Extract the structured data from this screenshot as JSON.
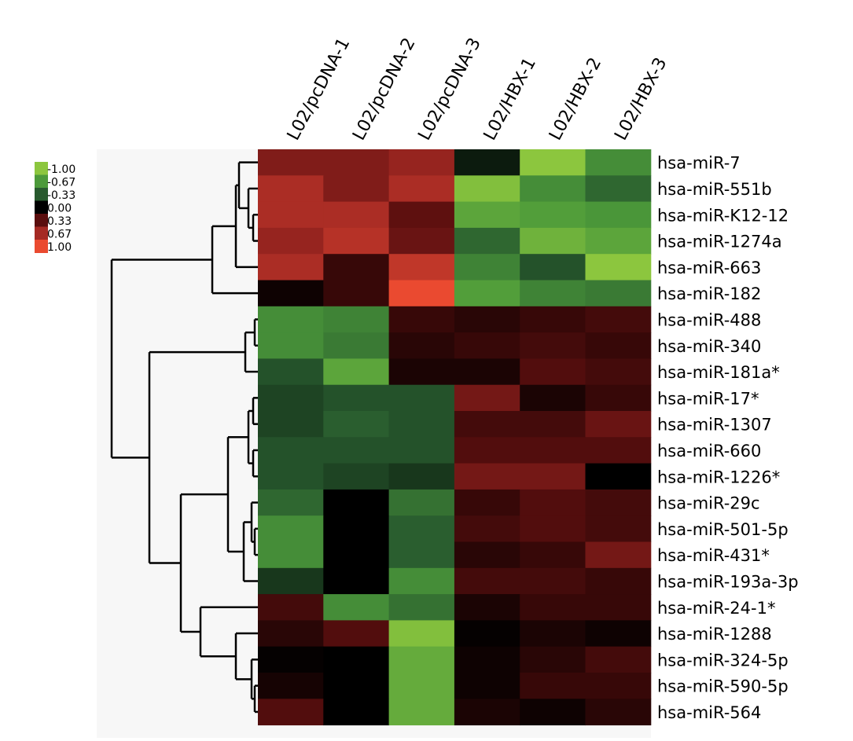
{
  "chart_data": {
    "type": "heatmap",
    "title": "",
    "columns": [
      "L02/pcDNA-1",
      "L02/pcDNA-2",
      "L02/pcDNA-3",
      "L02/HBX-1",
      "L02/HBX-2",
      "L02/HBX-3"
    ],
    "rows": [
      "hsa-miR-7",
      "hsa-miR-551b",
      "hsa-miR-K12-12",
      "hsa-miR-1274a",
      "hsa-miR-663",
      "hsa-miR-182",
      "hsa-miR-488",
      "hsa-miR-340",
      "hsa-miR-181a*",
      "hsa-miR-17*",
      "hsa-miR-1307",
      "hsa-miR-660",
      "hsa-miR-1226*",
      "hsa-miR-29c",
      "hsa-miR-501-5p",
      "hsa-miR-431*",
      "hsa-miR-193a-3p",
      "hsa-miR-24-1*",
      "hsa-miR-1288",
      "hsa-miR-324-5p",
      "hsa-miR-590-5p",
      "hsa-miR-564"
    ],
    "values": [
      [
        0.5,
        0.5,
        0.6,
        -0.1,
        -1.0,
        -0.6
      ],
      [
        0.7,
        0.5,
        0.7,
        -0.95,
        -0.6,
        -0.4
      ],
      [
        0.7,
        0.7,
        0.35,
        -0.75,
        -0.7,
        -0.65
      ],
      [
        0.6,
        0.75,
        0.4,
        -0.4,
        -0.85,
        -0.75
      ],
      [
        0.7,
        0.2,
        0.8,
        -0.55,
        -0.3,
        -1.0
      ],
      [
        0.05,
        0.2,
        1.0,
        -0.7,
        -0.55,
        -0.5
      ],
      [
        -0.6,
        -0.55,
        0.2,
        0.15,
        0.2,
        0.25
      ],
      [
        -0.6,
        -0.5,
        0.15,
        0.2,
        0.25,
        0.2
      ],
      [
        -0.3,
        -0.75,
        0.1,
        0.1,
        0.3,
        0.25
      ],
      [
        -0.25,
        -0.3,
        -0.3,
        0.45,
        0.1,
        0.2
      ],
      [
        -0.25,
        -0.35,
        -0.3,
        0.25,
        0.25,
        0.4
      ],
      [
        -0.3,
        -0.3,
        -0.3,
        0.3,
        0.3,
        0.3
      ],
      [
        -0.3,
        -0.25,
        -0.2,
        0.45,
        0.45,
        0.0
      ],
      [
        -0.4,
        0.0,
        -0.45,
        0.2,
        0.3,
        0.25
      ],
      [
        -0.6,
        0.0,
        -0.35,
        0.25,
        0.3,
        0.25
      ],
      [
        -0.6,
        0.0,
        -0.35,
        0.15,
        0.2,
        0.45
      ],
      [
        -0.2,
        0.0,
        -0.6,
        0.25,
        0.25,
        0.2
      ],
      [
        0.25,
        -0.6,
        -0.45,
        0.1,
        0.2,
        0.2
      ],
      [
        0.15,
        0.3,
        -0.95,
        0.02,
        0.1,
        0.05
      ],
      [
        0.02,
        0.0,
        -0.8,
        0.05,
        0.15,
        0.25
      ],
      [
        0.08,
        0.0,
        -0.8,
        0.05,
        0.2,
        0.2
      ],
      [
        0.3,
        0.0,
        -0.8,
        0.1,
        0.05,
        0.15
      ]
    ],
    "color_scale": {
      "stops": [
        -1.0,
        -0.67,
        -0.33,
        0.0,
        0.33,
        0.67,
        1.0
      ],
      "labels": [
        "-1.00",
        "-0.67",
        "-0.33",
        "0.00",
        "0.33",
        "0.67",
        "1.00"
      ],
      "colors": [
        "#8cc63e",
        "#4c9a3a",
        "#285a2e",
        "#000000",
        "#5a0e0e",
        "#a52a24",
        "#ea4a30"
      ]
    },
    "legend_position": "top-left",
    "dendrogram": "rows"
  }
}
